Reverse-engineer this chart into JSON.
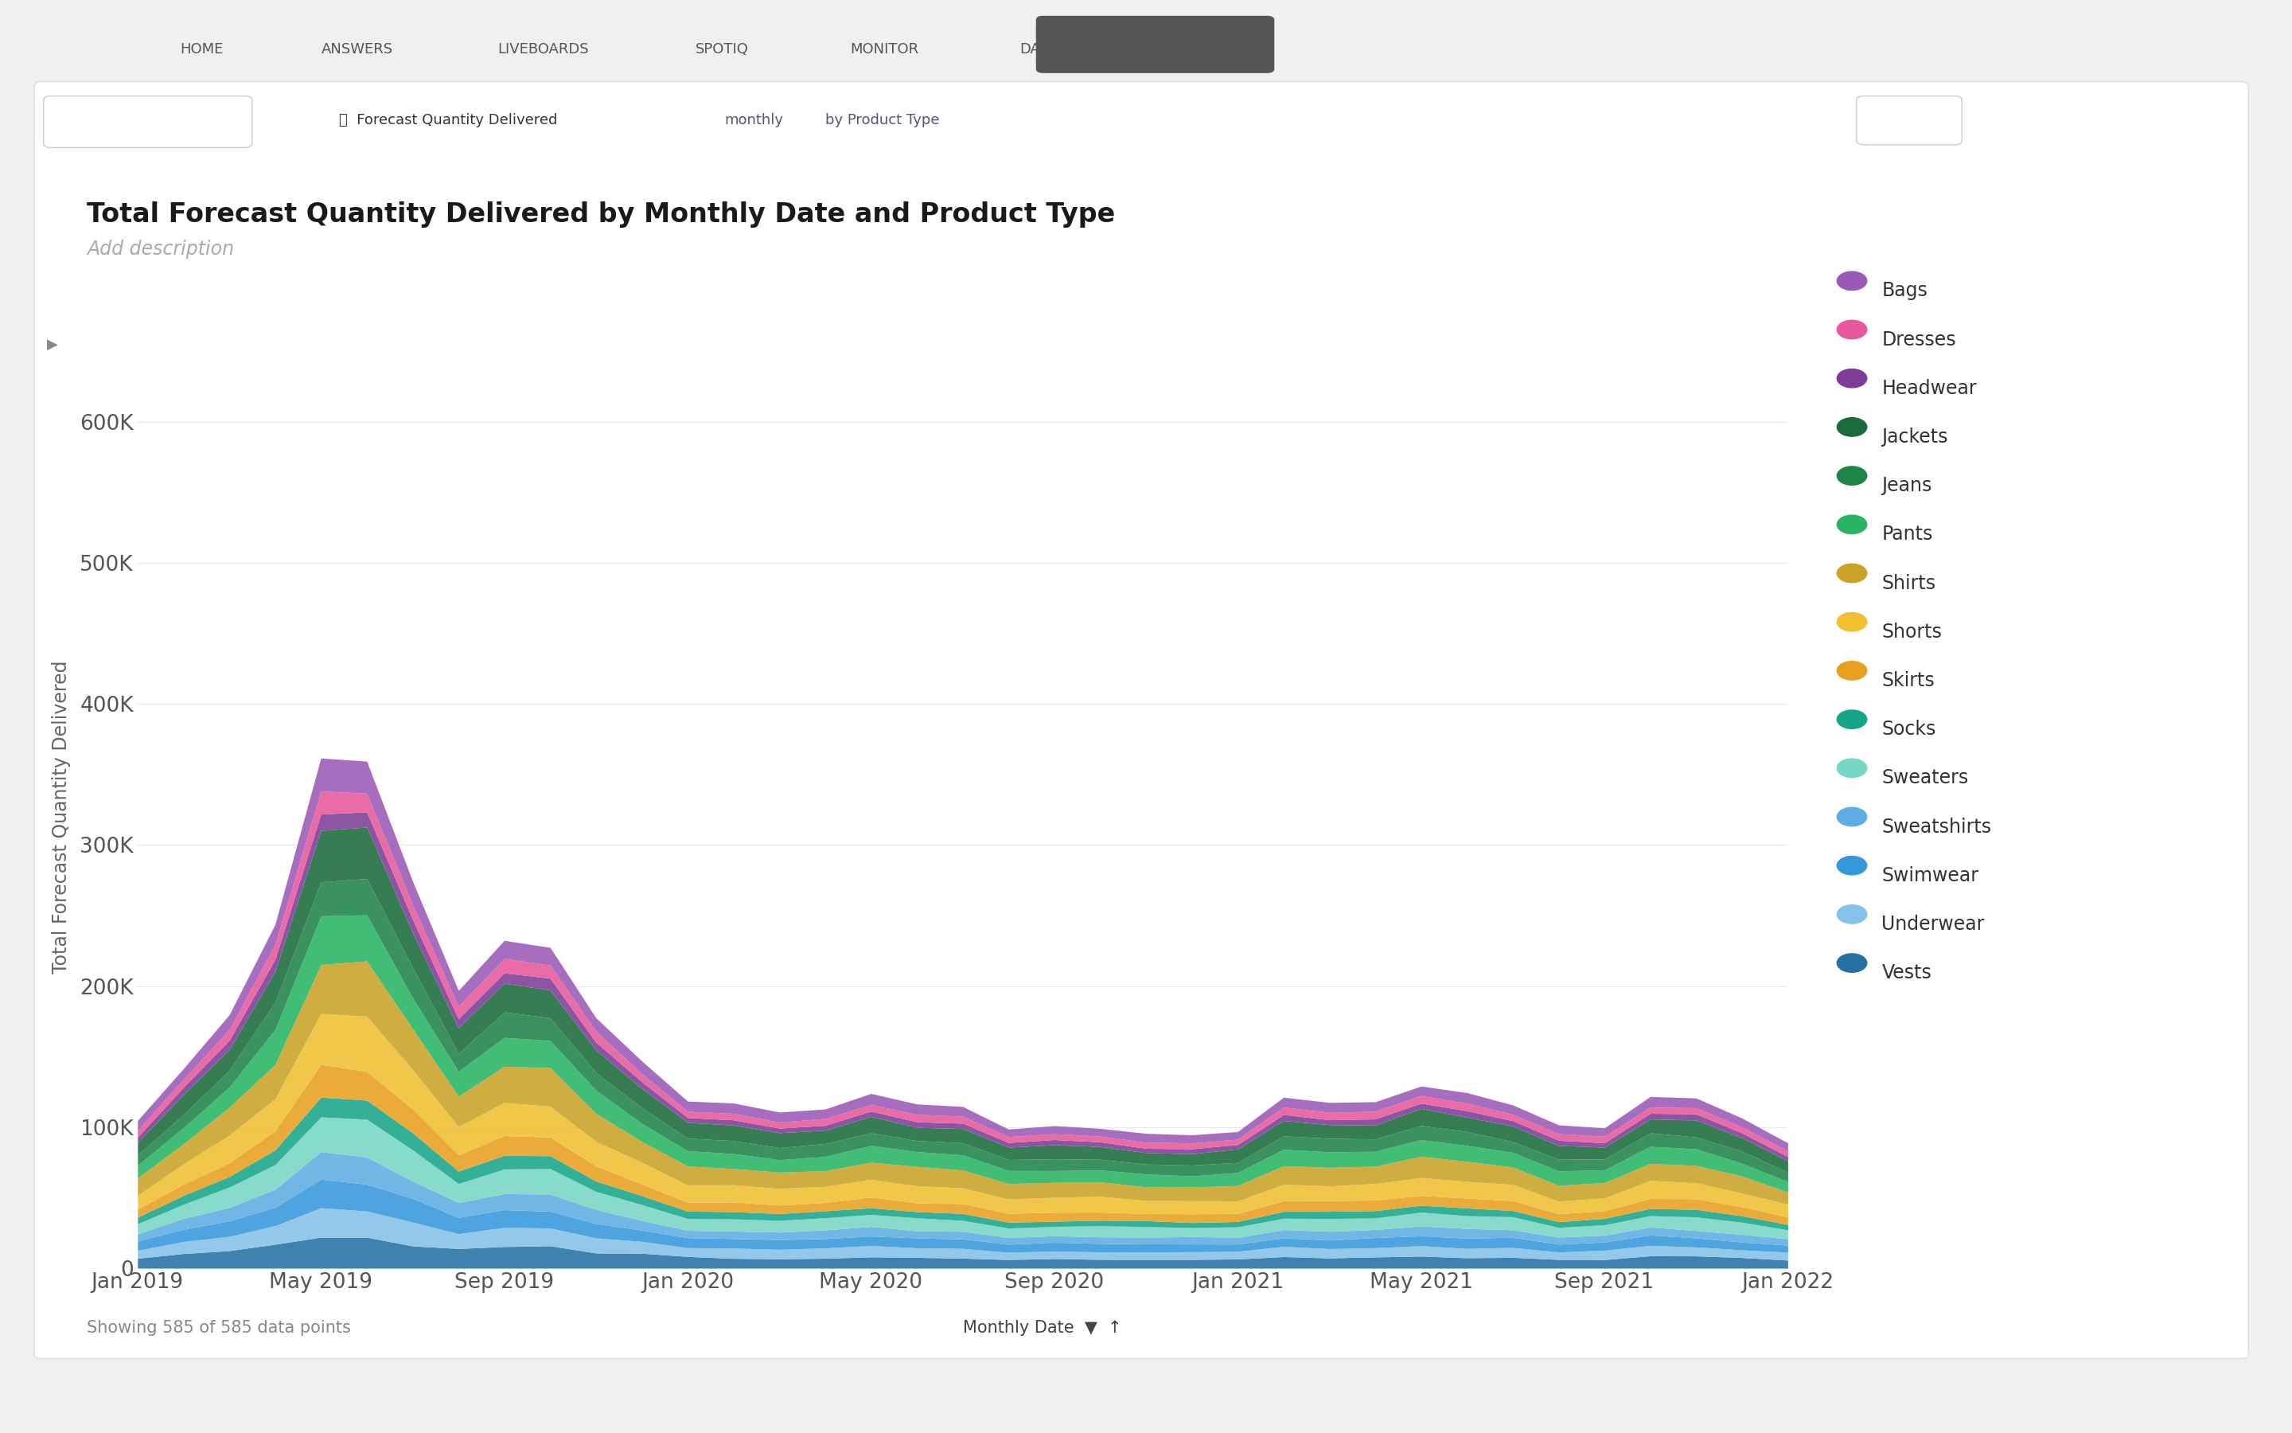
{
  "title": "Total Forecast Quantity Delivered by Monthly Date and Product Type",
  "subtitle": "Add description",
  "ylabel": "Total Forecast Quantity Delivered",
  "yticks": [
    0,
    100000,
    200000,
    300000,
    400000,
    500000,
    600000
  ],
  "ytick_labels": [
    "0",
    "100K",
    "200K",
    "300K",
    "400K",
    "500K",
    "600K"
  ],
  "xtick_positions": [
    0,
    4,
    8,
    12,
    16,
    20,
    24,
    28,
    32,
    36
  ],
  "xtick_labels": [
    "Jan 2019",
    "May 2019",
    "Sep 2019",
    "Jan 2020",
    "May 2020",
    "Sep 2020",
    "Jan 2021",
    "May 2021",
    "Sep 2021",
    "Jan 2022"
  ],
  "colors": {
    "Bags": "#9b59b6",
    "Dresses": "#e8589a",
    "Headwear": "#7d3c98",
    "Jackets": "#1a6b3c",
    "Jeans": "#1e8449",
    "Pants": "#28b463",
    "Shirts": "#c9a227",
    "Shorts": "#f0c030",
    "Skirts": "#e8a020",
    "Socks": "#17a589",
    "Sweaters": "#76d7c4",
    "Sweatshirts": "#5dade2",
    "Swimwear": "#3498db",
    "Underwear": "#85c1e9",
    "Vests": "#2471a3"
  },
  "layers_order": [
    "Vests",
    "Underwear",
    "Swimwear",
    "Sweatshirts",
    "Sweaters",
    "Socks",
    "Skirts",
    "Shorts",
    "Shirts",
    "Pants",
    "Jeans",
    "Jackets",
    "Headwear",
    "Dresses",
    "Bags"
  ],
  "legend_order": [
    "Bags",
    "Dresses",
    "Headwear",
    "Jackets",
    "Jeans",
    "Pants",
    "Shirts",
    "Shorts",
    "Skirts",
    "Socks",
    "Sweaters",
    "Sweatshirts",
    "Swimwear",
    "Underwear",
    "Vests"
  ],
  "n_months": 37,
  "footer_text": "Showing 585 of 585 data points",
  "footer_date": "Monthly Date",
  "background_color": "#f0f0f0",
  "chart_bg": "#ffffff"
}
